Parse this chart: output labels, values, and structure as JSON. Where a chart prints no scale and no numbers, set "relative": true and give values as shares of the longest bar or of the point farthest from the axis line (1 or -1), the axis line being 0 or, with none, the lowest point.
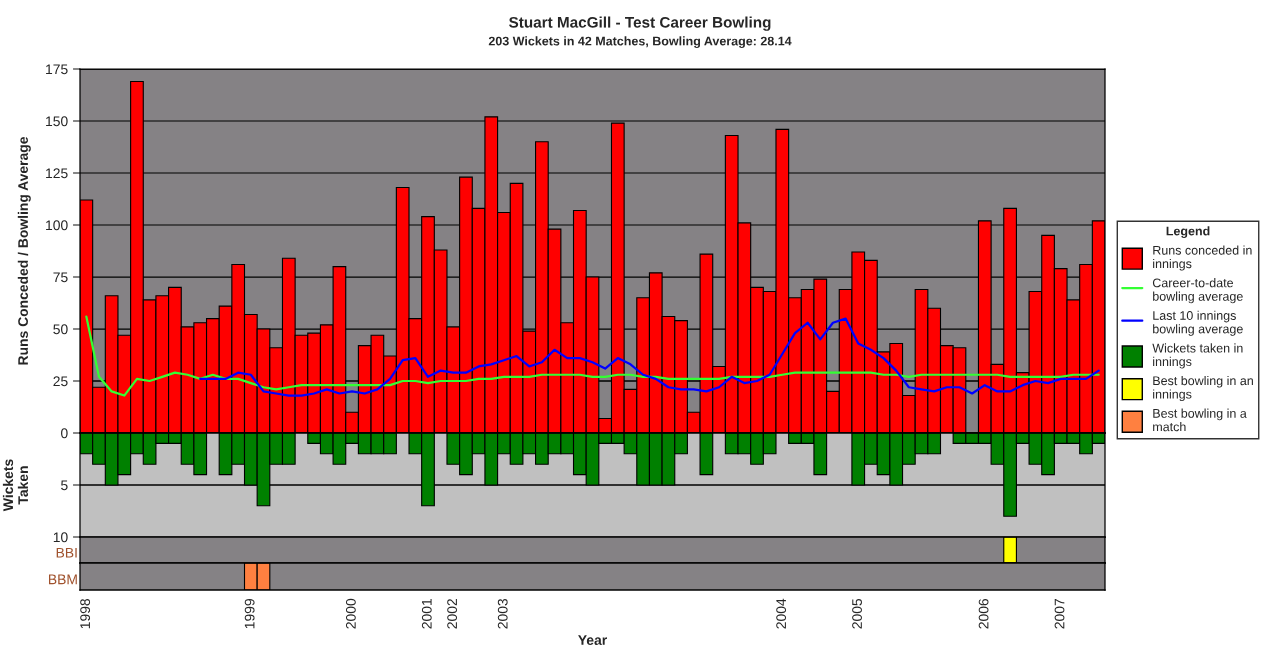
{
  "chart_data": [
    {
      "type": "bar",
      "title": "Stuart MacGill - Test Career Bowling",
      "subtitle": "203 Wickets in 42 Matches, Bowling Average: 28.14",
      "ylabel": "Runs Conceded / Bowling Average",
      "legend_title": "Legend",
      "legend": "right",
      "grid": "y",
      "tick_labels": "y",
      "categories": [
        "1998",
        null,
        null,
        null,
        null,
        null,
        null,
        null,
        null,
        null,
        null,
        null,
        null,
        "1999",
        null,
        null,
        null,
        null,
        null,
        null,
        null,
        "2000",
        null,
        null,
        null,
        null,
        null,
        "2001",
        null,
        "2002",
        null,
        null,
        null,
        "2003",
        null,
        null,
        null,
        null,
        null,
        null,
        null,
        null,
        null,
        null,
        null,
        null,
        null,
        null,
        null,
        null,
        null,
        null,
        null,
        null,
        null,
        "2004",
        null,
        null,
        null,
        null,
        null,
        "2005",
        null,
        null,
        null,
        null,
        null,
        null,
        null,
        null,
        null,
        "2006",
        null,
        null,
        null,
        null,
        null,
        "2007",
        null,
        null,
        null
      ],
      "ylim": [
        0,
        175
      ],
      "yticks": [
        0,
        25,
        50,
        75,
        100,
        125,
        150,
        175
      ],
      "series": [
        {
          "name": "Runs conceded in innings",
          "color": "#ff0000",
          "values": [
            112,
            22,
            66,
            47,
            169,
            64,
            66,
            70,
            51,
            53,
            55,
            61,
            81,
            57,
            50,
            41,
            84,
            47,
            48,
            52,
            80,
            10,
            42,
            47,
            37,
            118,
            55,
            104,
            88,
            51,
            123,
            108,
            152,
            106,
            120,
            49,
            140,
            98,
            53,
            107,
            75,
            7,
            149,
            21,
            65,
            77,
            56,
            54,
            10,
            86,
            32,
            143,
            101,
            70,
            68,
            146,
            65,
            69,
            74,
            20,
            69,
            87,
            83,
            39,
            43,
            18,
            69,
            60,
            42,
            41,
            null,
            102,
            33,
            108,
            29,
            68,
            95,
            79,
            64,
            81,
            102
          ]
        },
        {
          "type": "line",
          "name": "Career-to-date bowling average",
          "color": "#33ff33",
          "values": [
            56,
            27,
            20,
            18,
            26,
            25,
            27,
            29,
            28,
            26,
            28,
            26,
            26,
            24,
            22,
            21,
            22,
            23,
            23,
            23,
            23,
            23,
            23,
            23,
            23,
            25,
            25,
            24,
            25,
            25,
            25,
            26,
            26,
            27,
            27,
            27,
            28,
            28,
            28,
            28,
            27,
            27,
            28,
            28,
            27,
            27,
            26,
            26,
            26,
            26,
            26,
            27,
            27,
            27,
            27,
            28,
            29,
            29,
            29,
            29,
            29,
            29,
            29,
            28,
            28,
            27,
            28,
            28,
            28,
            28,
            28,
            28,
            28,
            27,
            27,
            27,
            27,
            27,
            28,
            28,
            28
          ]
        },
        {
          "type": "line",
          "name": "Last 10 innings bowling average",
          "color": "#0000ff",
          "values": [
            null,
            null,
            null,
            null,
            null,
            null,
            null,
            null,
            null,
            26,
            26,
            26,
            29,
            28,
            20,
            19,
            18,
            18,
            19,
            21,
            19,
            20,
            19,
            21,
            26,
            35,
            36,
            27,
            30,
            29,
            29,
            32,
            33,
            35,
            37,
            32,
            34,
            40,
            36,
            36,
            34,
            31,
            36,
            33,
            28,
            26,
            22,
            21,
            21,
            20,
            22,
            27,
            24,
            25,
            28,
            38,
            48,
            53,
            45,
            53,
            55,
            43,
            40,
            36,
            30,
            22,
            21,
            20,
            22,
            22,
            19,
            23,
            20,
            20,
            23,
            25,
            24,
            26,
            26,
            26,
            30
          ]
        }
      ]
    },
    {
      "type": "bar",
      "ylabel": "Wickets\nTaken",
      "grid": "y",
      "tick_labels": "y",
      "categories": [
        "1998",
        null,
        null,
        null,
        null,
        null,
        null,
        null,
        null,
        null,
        null,
        null,
        null,
        "1999",
        null,
        null,
        null,
        null,
        null,
        null,
        null,
        "2000",
        null,
        null,
        null,
        null,
        null,
        "2001",
        null,
        "2002",
        null,
        null,
        null,
        "2003",
        null,
        null,
        null,
        null,
        null,
        null,
        null,
        null,
        null,
        null,
        null,
        null,
        null,
        null,
        null,
        null,
        null,
        null,
        null,
        null,
        null,
        "2004",
        null,
        null,
        null,
        null,
        null,
        "2005",
        null,
        null,
        null,
        null,
        null,
        null,
        null,
        null,
        null,
        "2006",
        null,
        null,
        null,
        null,
        null,
        "2007",
        null,
        null,
        null
      ],
      "ylim": [
        10,
        0
      ],
      "yticks": [
        5,
        10
      ],
      "series": [
        {
          "name": "Wickets taken in innings",
          "color": "#008000",
          "values": [
            2,
            3,
            5,
            4,
            2,
            3,
            1,
            1,
            3,
            4,
            null,
            4,
            3,
            5,
            7,
            3,
            3,
            null,
            1,
            2,
            3,
            1,
            2,
            2,
            2,
            null,
            2,
            7,
            null,
            3,
            4,
            2,
            5,
            2,
            3,
            2,
            3,
            2,
            2,
            4,
            5,
            1,
            1,
            2,
            5,
            5,
            5,
            2,
            null,
            4,
            null,
            2,
            2,
            3,
            2,
            null,
            1,
            1,
            4,
            null,
            null,
            5,
            3,
            4,
            5,
            3,
            2,
            2,
            null,
            1,
            1,
            1,
            3,
            8,
            1,
            3,
            4,
            1,
            1,
            2,
            1
          ]
        }
      ]
    },
    {
      "type": "bar",
      "ylabel": "BBI",
      "relative": true,
      "tick_labels": false,
      "categories": [
        "1998",
        null,
        null,
        null,
        null,
        null,
        null,
        null,
        null,
        null,
        null,
        null,
        null,
        "1999",
        null,
        null,
        null,
        null,
        null,
        null,
        null,
        "2000",
        null,
        null,
        null,
        null,
        null,
        "2001",
        null,
        "2002",
        null,
        null,
        null,
        "2003",
        null,
        null,
        null,
        null,
        null,
        null,
        null,
        null,
        null,
        null,
        null,
        null,
        null,
        null,
        null,
        null,
        null,
        null,
        null,
        null,
        null,
        "2004",
        null,
        null,
        null,
        null,
        null,
        "2005",
        null,
        null,
        null,
        null,
        null,
        null,
        null,
        null,
        null,
        "2006",
        null,
        null,
        null,
        null,
        null,
        "2007",
        null,
        null,
        null
      ],
      "series": [
        {
          "name": "Best bowling in an innings",
          "color": "#ffff00",
          "values": [
            null,
            null,
            null,
            null,
            null,
            null,
            null,
            null,
            null,
            null,
            null,
            null,
            null,
            null,
            null,
            null,
            null,
            null,
            null,
            null,
            null,
            null,
            null,
            null,
            null,
            null,
            null,
            null,
            null,
            null,
            null,
            null,
            null,
            null,
            null,
            null,
            null,
            null,
            null,
            null,
            null,
            null,
            null,
            null,
            null,
            null,
            null,
            null,
            null,
            null,
            null,
            null,
            null,
            null,
            null,
            null,
            null,
            null,
            null,
            null,
            null,
            null,
            null,
            null,
            null,
            null,
            null,
            null,
            null,
            null,
            null,
            null,
            null,
            1,
            null,
            null,
            null,
            null,
            null,
            null,
            null
          ]
        }
      ]
    },
    {
      "type": "bar",
      "ylabel": "BBM",
      "xlabel": "Year",
      "relative": true,
      "tick_labels": "x",
      "categories": [
        "1998",
        null,
        null,
        null,
        null,
        null,
        null,
        null,
        null,
        null,
        null,
        null,
        null,
        "1999",
        null,
        null,
        null,
        null,
        null,
        null,
        null,
        "2000",
        null,
        null,
        null,
        null,
        null,
        "2001",
        null,
        "2002",
        null,
        null,
        null,
        "2003",
        null,
        null,
        null,
        null,
        null,
        null,
        null,
        null,
        null,
        null,
        null,
        null,
        null,
        null,
        null,
        null,
        null,
        null,
        null,
        null,
        null,
        "2004",
        null,
        null,
        null,
        null,
        null,
        "2005",
        null,
        null,
        null,
        null,
        null,
        null,
        null,
        null,
        null,
        "2006",
        null,
        null,
        null,
        null,
        null,
        "2007",
        null,
        null,
        null
      ],
      "series": [
        {
          "name": "Best bowling in a match",
          "color": "#ff8040",
          "values": [
            null,
            null,
            null,
            null,
            null,
            null,
            null,
            null,
            null,
            null,
            null,
            null,
            null,
            1,
            1,
            null,
            null,
            null,
            null,
            null,
            null,
            null,
            null,
            null,
            null,
            null,
            null,
            null,
            null,
            null,
            null,
            null,
            null,
            null,
            null,
            null,
            null,
            null,
            null,
            null,
            null,
            null,
            null,
            null,
            null,
            null,
            null,
            null,
            null,
            null,
            null,
            null,
            null,
            null,
            null,
            null,
            null,
            null,
            null,
            null,
            null,
            null,
            null,
            null,
            null,
            null,
            null,
            null,
            null,
            null,
            null,
            null,
            null,
            null,
            null,
            null,
            null,
            null,
            null,
            null,
            null
          ]
        }
      ]
    }
  ]
}
